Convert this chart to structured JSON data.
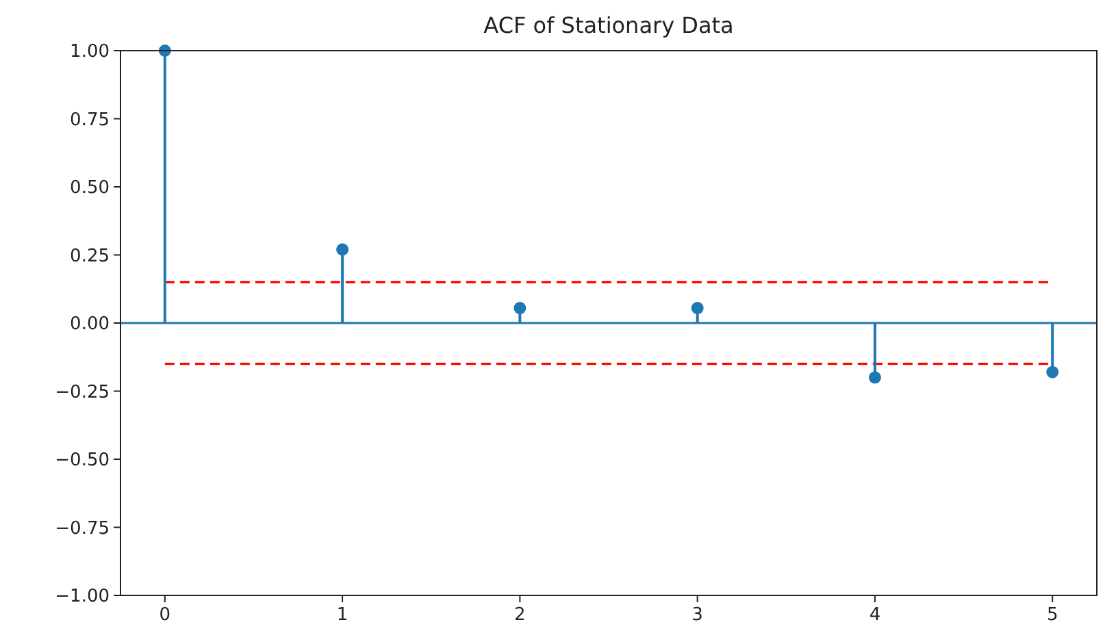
{
  "chart_data": {
    "type": "lollipop",
    "title": "ACF of Stationary Data",
    "x": [
      0,
      1,
      2,
      3,
      4,
      5
    ],
    "values": [
      1.0,
      0.27,
      0.055,
      0.055,
      -0.2,
      -0.18
    ],
    "color": "#1f77b4",
    "marker": "circle",
    "xlim": [
      -0.25,
      5.25
    ],
    "xticks": [
      0,
      1,
      2,
      3,
      4,
      5
    ],
    "ylim": [
      -1,
      1
    ],
    "yticks": [
      {
        "value": -1,
        "label": "−1.00"
      },
      {
        "value": -0.75,
        "label": "−0.75"
      },
      {
        "value": -0.5,
        "label": "−0.50"
      },
      {
        "value": -0.25,
        "label": "−0.25"
      },
      {
        "value": 0,
        "label": "0.00"
      },
      {
        "value": 0.25,
        "label": "0.25"
      },
      {
        "value": 0.5,
        "label": "0.50"
      },
      {
        "value": 0.75,
        "label": "0.75"
      },
      {
        "value": 1,
        "label": "1.00"
      }
    ],
    "ref_lines": [
      {
        "axis": "y",
        "value": 0,
        "color": "#1f77b4",
        "line_style": "solid"
      },
      {
        "axis": "y",
        "value": 0.15,
        "color": "#ff0000",
        "line_style": "dashed"
      },
      {
        "axis": "y",
        "value": -0.15,
        "color": "#ff0000",
        "line_style": "dashed"
      }
    ],
    "grid": false
  }
}
